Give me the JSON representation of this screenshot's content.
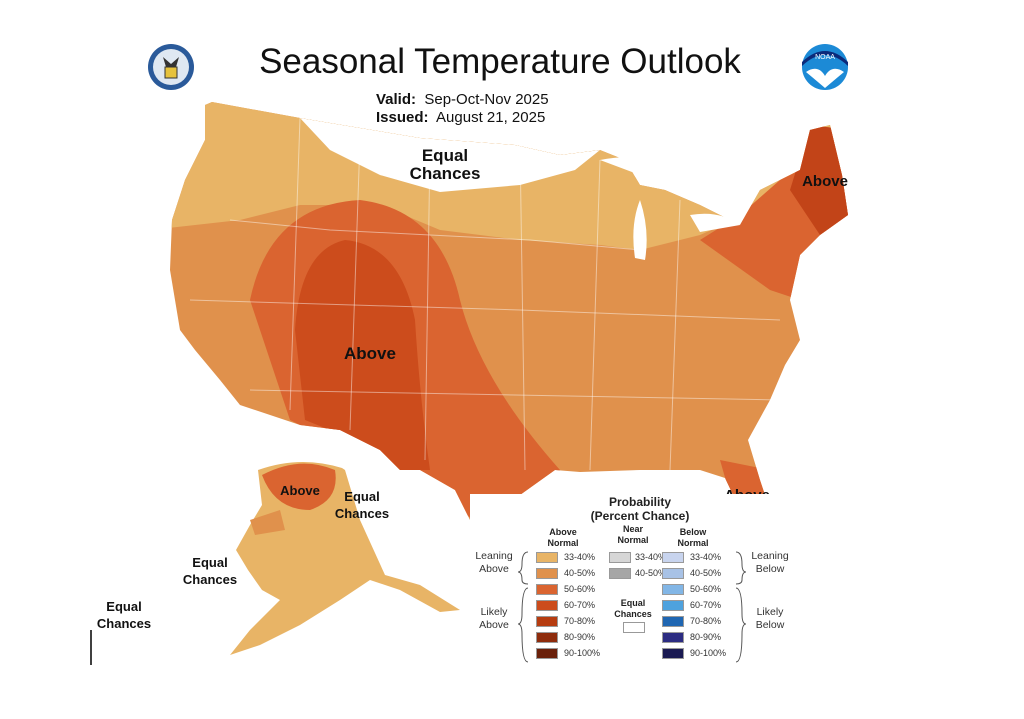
{
  "header": {
    "title": "Seasonal Temperature Outlook",
    "valid_label": "Valid:",
    "valid_value": "Sep-Oct-Nov 2025",
    "issued_label": "Issued:",
    "issued_value": "August 21, 2025",
    "left_logo": "department-of-commerce-seal",
    "right_logo": "noaa-logo",
    "right_logo_text": "NOAA"
  },
  "map_labels": {
    "north_equal": "Equal Chances",
    "west_above": "Above",
    "northeast_above": "Above",
    "florida_above": "Above",
    "alaska_above": "Above",
    "alaska_equal": "Equal Chances",
    "aleutian_equal": "Equal Chances",
    "hawaii_equal": "Equal Chances"
  },
  "legend": {
    "title_line1": "Probability",
    "title_line2": "(Percent Chance)",
    "above_header": "Above Normal",
    "near_header": "Near Normal",
    "below_header": "Below Normal",
    "leaning_above": "Leaning Above",
    "likely_above": "Likely Above",
    "leaning_below": "Leaning Below",
    "likely_below": "Likely Below",
    "equal_chances": "Equal Chances",
    "equal_color": "#ffffff",
    "above": [
      {
        "label": "33-40%",
        "color": "#e8b466"
      },
      {
        "label": "40-50%",
        "color": "#e0914c"
      },
      {
        "label": "50-60%",
        "color": "#da6430"
      },
      {
        "label": "60-70%",
        "color": "#cc4c1c"
      },
      {
        "label": "70-80%",
        "color": "#b63c10"
      },
      {
        "label": "80-90%",
        "color": "#8e2c0c"
      },
      {
        "label": "90-100%",
        "color": "#6a200a"
      }
    ],
    "near": [
      {
        "label": "33-40%",
        "color": "#d6d6d6"
      },
      {
        "label": "40-50%",
        "color": "#a6a6a6"
      }
    ],
    "below": [
      {
        "label": "33-40%",
        "color": "#c8d4ee"
      },
      {
        "label": "40-50%",
        "color": "#a8c2e6"
      },
      {
        "label": "50-60%",
        "color": "#82b6e6"
      },
      {
        "label": "60-70%",
        "color": "#4ea2de"
      },
      {
        "label": "70-80%",
        "color": "#1f66b2"
      },
      {
        "label": "80-90%",
        "color": "#2c2c82"
      },
      {
        "label": "90-100%",
        "color": "#1a1a52"
      }
    ]
  }
}
